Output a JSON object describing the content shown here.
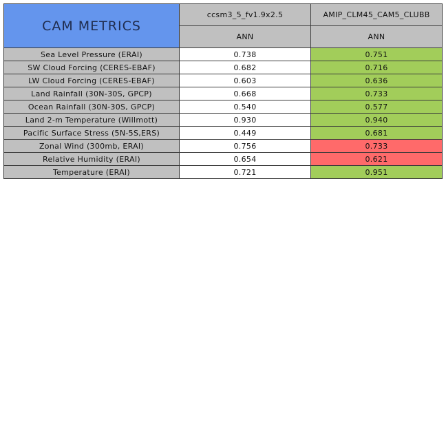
{
  "chart_data": {
    "type": "table",
    "title": "CAM METRICS",
    "columns": [
      {
        "model": "ccsm3_5_fv1.9x2.5",
        "period": "ANN"
      },
      {
        "model": "AMIP_CLM45_CAM5_CLUBB",
        "period": "ANN"
      }
    ],
    "rows": [
      {
        "label": "Sea Level Pressure (ERAI)",
        "values": [
          "0.738",
          "0.751"
        ],
        "colors": [
          "#ffffff",
          "#a2cd5a"
        ]
      },
      {
        "label": "SW Cloud Forcing (CERES-EBAF)",
        "values": [
          "0.682",
          "0.716"
        ],
        "colors": [
          "#ffffff",
          "#a2cd5a"
        ]
      },
      {
        "label": "LW Cloud Forcing (CERES-EBAF)",
        "values": [
          "0.603",
          "0.636"
        ],
        "colors": [
          "#ffffff",
          "#a2cd5a"
        ]
      },
      {
        "label": "Land Rainfall (30N-30S, GPCP)",
        "values": [
          "0.668",
          "0.733"
        ],
        "colors": [
          "#ffffff",
          "#a2cd5a"
        ]
      },
      {
        "label": "Ocean Rainfall (30N-30S, GPCP)",
        "values": [
          "0.540",
          "0.577"
        ],
        "colors": [
          "#ffffff",
          "#a2cd5a"
        ]
      },
      {
        "label": "Land 2-m Temperature (Willmott)",
        "values": [
          "0.930",
          "0.940"
        ],
        "colors": [
          "#ffffff",
          "#a2cd5a"
        ]
      },
      {
        "label": "Pacific Surface Stress (5N-5S,ERS)",
        "values": [
          "0.449",
          "0.681"
        ],
        "colors": [
          "#ffffff",
          "#a2cd5a"
        ]
      },
      {
        "label": "Zonal Wind (300mb, ERAI)",
        "values": [
          "0.756",
          "0.733"
        ],
        "colors": [
          "#ffffff",
          "#ff6a6a"
        ]
      },
      {
        "label": "Relative Humidity (ERAI)",
        "values": [
          "0.654",
          "0.621"
        ],
        "colors": [
          "#ffffff",
          "#ff6a6a"
        ]
      },
      {
        "label": "Temperature (ERAI)",
        "values": [
          "0.721",
          "0.951"
        ],
        "colors": [
          "#ffffff",
          "#a2cd5a"
        ]
      }
    ]
  }
}
